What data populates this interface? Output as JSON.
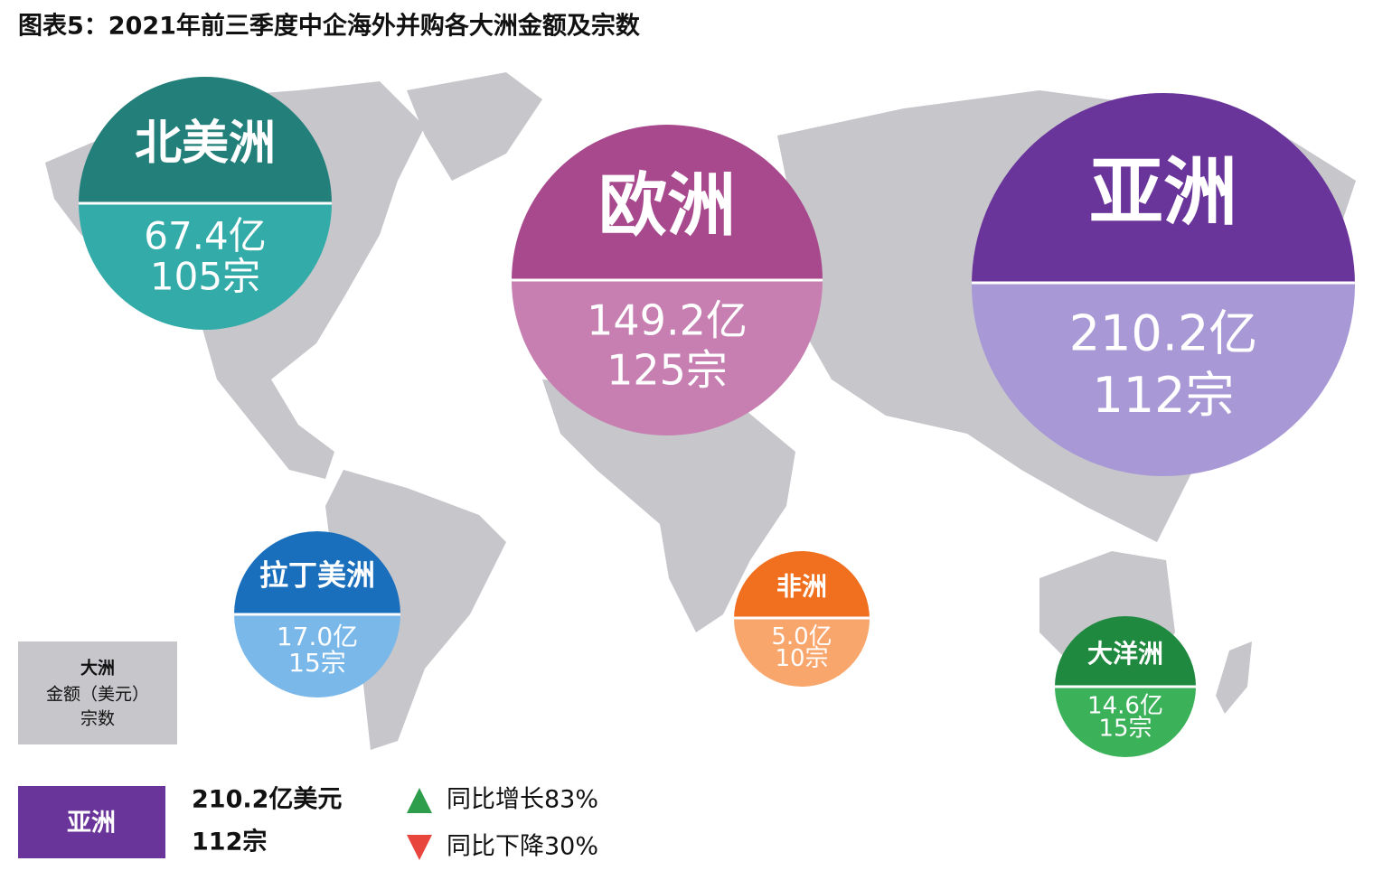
{
  "title": "图表5：2021年前三季度中企海外并购各大洲金额及宗数",
  "regions": [
    {
      "name": "北美洲",
      "amount": "67.4亿",
      "deals": "105宗"
    },
    {
      "name": "欧洲",
      "amount": "149.2亿",
      "deals": "125宗"
    },
    {
      "name": "亚洲",
      "amount": "210.2亿",
      "deals": "112宗"
    },
    {
      "name": "拉丁美洲",
      "amount": "17.0亿",
      "deals": "15宗"
    },
    {
      "name": "非洲",
      "amount": "5.0亿",
      "deals": "10宗"
    },
    {
      "name": "大洋洲",
      "amount": "14.6亿",
      "deals": "15宗"
    }
  ],
  "legend": {
    "key": {
      "line1": "大洲",
      "line2": "金额（美元）",
      "line3": "宗数"
    },
    "example": {
      "name": "亚洲",
      "amount": "210.2亿美元",
      "deals": "112宗"
    },
    "up": "同比增长83%",
    "down": "同比下降30%"
  }
}
